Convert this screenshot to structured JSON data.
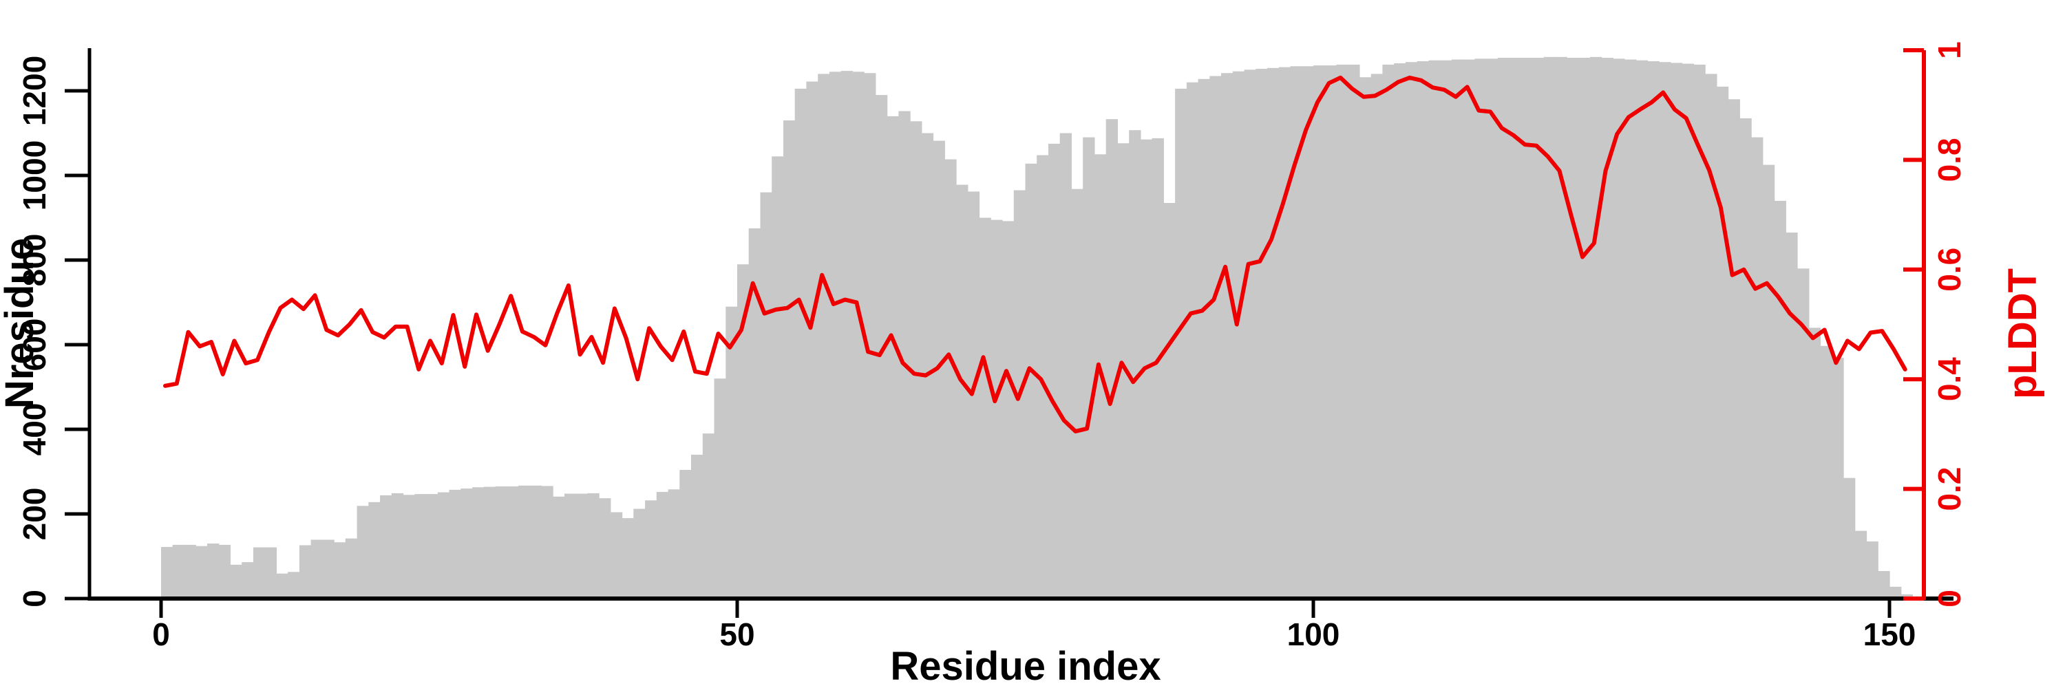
{
  "chart_data": {
    "type": "bar",
    "subtype": "dual-axis bar + line (per-residue profile)",
    "xlabel": "Residue index",
    "ylabel_left": "Nresidue",
    "ylabel_right": "pLDDT",
    "x_ticks": [
      0,
      50,
      100,
      150
    ],
    "y_left_ticks": [
      0,
      200,
      400,
      600,
      800,
      1000,
      1200
    ],
    "y_right_ticks": [
      0,
      0.2,
      0.4,
      0.6,
      0.8,
      1
    ],
    "xlim": [
      -6,
      158
    ],
    "ylim_left": [
      0,
      1300
    ],
    "ylim_right": [
      0,
      1
    ],
    "grid": false,
    "legend_position": "none",
    "colors": {
      "bars": "#c8c8c8",
      "line": "#ee0000",
      "axis_left": "#000000",
      "axis_right": "#ee0000"
    },
    "x": "residue index 0..151 (one bar per residue)",
    "series": [
      {
        "name": "Nresidue",
        "type": "bar",
        "axis": "left",
        "color": "#c8c8c8",
        "values": [
          122,
          127,
          127,
          124,
          130,
          127,
          80,
          86,
          121,
          121,
          59,
          63,
          126,
          139,
          139,
          133,
          142,
          219,
          228,
          244,
          249,
          245,
          247,
          247,
          251,
          257,
          260,
          263,
          264,
          265,
          265,
          267,
          267,
          266,
          241,
          248,
          248,
          249,
          237,
          204,
          190,
          212,
          232,
          252,
          258,
          304,
          340,
          390,
          520,
          690,
          790,
          875,
          960,
          1045,
          1130,
          1205,
          1222,
          1240,
          1245,
          1247,
          1245,
          1242,
          1190,
          1140,
          1152,
          1128,
          1100,
          1082,
          1038,
          978,
          962,
          900,
          895,
          892,
          965,
          1028,
          1048,
          1075,
          1100,
          968,
          1090,
          1050,
          1133,
          1076,
          1107,
          1085,
          1088,
          935,
          1205,
          1220,
          1228,
          1235,
          1242,
          1246,
          1250,
          1252,
          1254,
          1256,
          1258,
          1258,
          1260,
          1260,
          1262,
          1262,
          1232,
          1240,
          1262,
          1265,
          1268,
          1270,
          1272,
          1272,
          1274,
          1274,
          1276,
          1276,
          1278,
          1278,
          1278,
          1278,
          1280,
          1280,
          1278,
          1278,
          1280,
          1278,
          1276,
          1274,
          1272,
          1270,
          1268,
          1266,
          1264,
          1262,
          1240,
          1210,
          1180,
          1135,
          1090,
          1025,
          940,
          865,
          780,
          640,
          597,
          569,
          285,
          160,
          135,
          65,
          28,
          10
        ]
      },
      {
        "name": "pLDDT",
        "type": "line",
        "axis": "right",
        "color": "#ee0000",
        "values": [
          0.388,
          0.392,
          0.486,
          0.46,
          0.468,
          0.409,
          0.47,
          0.429,
          0.435,
          0.486,
          0.53,
          0.545,
          0.528,
          0.553,
          0.49,
          0.48,
          0.5,
          0.526,
          0.486,
          0.476,
          0.496,
          0.496,
          0.418,
          0.47,
          0.429,
          0.517,
          0.423,
          0.518,
          0.452,
          0.5,
          0.552,
          0.487,
          0.477,
          0.462,
          0.52,
          0.571,
          0.445,
          0.477,
          0.43,
          0.529,
          0.475,
          0.4,
          0.493,
          0.46,
          0.435,
          0.487,
          0.414,
          0.41,
          0.483,
          0.458,
          0.49,
          0.575,
          0.52,
          0.527,
          0.53,
          0.545,
          0.494,
          0.59,
          0.537,
          0.545,
          0.54,
          0.45,
          0.444,
          0.48,
          0.43,
          0.41,
          0.407,
          0.42,
          0.445,
          0.4,
          0.373,
          0.44,
          0.36,
          0.415,
          0.364,
          0.42,
          0.4,
          0.36,
          0.325,
          0.305,
          0.31,
          0.427,
          0.355,
          0.43,
          0.395,
          0.42,
          0.43,
          0.46,
          0.49,
          0.52,
          0.525,
          0.545,
          0.605,
          0.5,
          0.61,
          0.615,
          0.655,
          0.72,
          0.79,
          0.855,
          0.905,
          0.94,
          0.95,
          0.93,
          0.915,
          0.917,
          0.928,
          0.942,
          0.95,
          0.945,
          0.932,
          0.928,
          0.915,
          0.933,
          0.89,
          0.888,
          0.858,
          0.845,
          0.828,
          0.826,
          0.806,
          0.78,
          0.7,
          0.623,
          0.648,
          0.78,
          0.847,
          0.878,
          0.892,
          0.905,
          0.923,
          0.892,
          0.876,
          0.828,
          0.781,
          0.713,
          0.59,
          0.6,
          0.565,
          0.575,
          0.55,
          0.52,
          0.5,
          0.475,
          0.49,
          0.43,
          0.47,
          0.455,
          0.485,
          0.488,
          0.455,
          0.418
        ]
      }
    ]
  }
}
